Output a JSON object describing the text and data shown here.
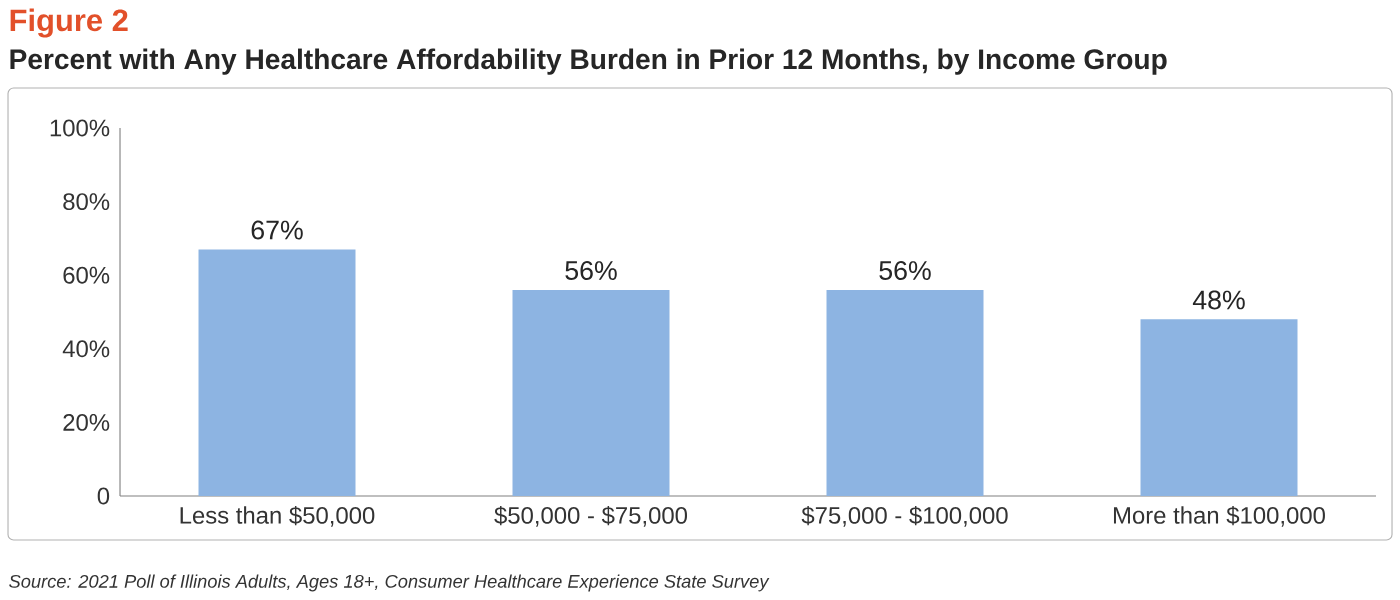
{
  "chart_data": {
    "type": "bar",
    "title": "Figure 2",
    "subtitle": "Percent with Any Healthcare Affordability Burden in Prior 12 Months, by Income Group",
    "categories": [
      "Less than $50,000",
      "$50,000 - $75,000",
      "$75,000 - $100,000",
      "More than $100,000"
    ],
    "values": [
      67,
      56,
      56,
      48
    ],
    "value_labels": [
      "67%",
      "56%",
      "56%",
      "48%"
    ],
    "color": "#8db4e2",
    "ylim": [
      0,
      100
    ],
    "yticks": [
      0,
      {
        "value": 20,
        "label": "20%"
      },
      {
        "value": 40,
        "label": "40%"
      },
      {
        "value": 60,
        "label": "60%"
      },
      {
        "value": 80,
        "label": "80%"
      },
      {
        "value": 100,
        "label": "100%"
      }
    ],
    "grid": false,
    "annotations": [
      "Source: 2021 Poll of Illinois Adults, Ages 18+, Consumer Healthcare Experience State Survey"
    ]
  }
}
